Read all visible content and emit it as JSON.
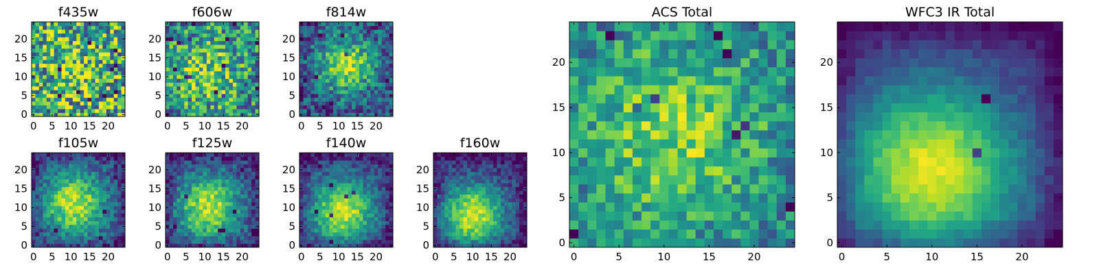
{
  "chart_data": {
    "type": "heatmap",
    "colormap": "viridis",
    "grid": false,
    "panels": [
      {
        "id": "f435w",
        "title": "f435w",
        "size": 25,
        "xlim": [
          0,
          24
        ],
        "ylim": [
          0,
          24
        ],
        "xticks": [
          "0",
          "5",
          "10",
          "15",
          "20"
        ],
        "yticks": [
          "0",
          "5",
          "10",
          "15",
          "20"
        ],
        "pattern": "noise",
        "peak": [
          12,
          12
        ],
        "spread": 6,
        "strength": 0.15,
        "noise": 0.9
      },
      {
        "id": "f606w",
        "title": "f606w",
        "size": 25,
        "xlim": [
          0,
          24
        ],
        "ylim": [
          0,
          24
        ],
        "xticks": [
          "0",
          "5",
          "10",
          "15",
          "20"
        ],
        "yticks": [
          "0",
          "5",
          "10",
          "15",
          "20"
        ],
        "pattern": "noise",
        "peak": [
          11,
          11
        ],
        "spread": 6,
        "strength": 0.35,
        "noise": 0.7
      },
      {
        "id": "f814w",
        "title": "f814w",
        "size": 25,
        "xlim": [
          0,
          24
        ],
        "ylim": [
          0,
          24
        ],
        "xticks": [
          "0",
          "5",
          "10",
          "15",
          "20"
        ],
        "yticks": [
          "0",
          "5",
          "10",
          "15",
          "20"
        ],
        "pattern": "source",
        "peak": [
          12,
          13
        ],
        "spread": 5,
        "strength": 0.6,
        "noise": 0.5
      },
      {
        "id": "f105w",
        "title": "f105w",
        "size": 25,
        "xlim": [
          0,
          24
        ],
        "ylim": [
          0,
          24
        ],
        "xticks": [
          "0",
          "5",
          "10",
          "15",
          "20"
        ],
        "yticks": [
          "0",
          "5",
          "10",
          "15",
          "20"
        ],
        "pattern": "source",
        "peak": [
          11,
          11
        ],
        "spread": 6,
        "strength": 0.7,
        "noise": 0.35
      },
      {
        "id": "f125w",
        "title": "f125w",
        "size": 25,
        "xlim": [
          0,
          24
        ],
        "ylim": [
          0,
          24
        ],
        "xticks": [
          "0",
          "5",
          "10",
          "15",
          "20"
        ],
        "yticks": [
          "0",
          "5",
          "10",
          "15",
          "20"
        ],
        "pattern": "source",
        "peak": [
          11,
          10
        ],
        "spread": 6,
        "strength": 0.72,
        "noise": 0.35
      },
      {
        "id": "f140w",
        "title": "f140w",
        "size": 25,
        "xlim": [
          0,
          24
        ],
        "ylim": [
          0,
          24
        ],
        "xticks": [
          "0",
          "5",
          "10",
          "15",
          "20"
        ],
        "yticks": [
          "0",
          "5",
          "10",
          "15",
          "20"
        ],
        "pattern": "source",
        "peak": [
          11,
          9
        ],
        "spread": 6,
        "strength": 0.75,
        "noise": 0.3
      },
      {
        "id": "f160w",
        "title": "f160w",
        "size": 25,
        "xlim": [
          0,
          24
        ],
        "ylim": [
          0,
          24
        ],
        "xticks": [
          "0",
          "5",
          "10",
          "15",
          "20"
        ],
        "yticks": [
          "0",
          "5",
          "10",
          "15",
          "20"
        ],
        "pattern": "source",
        "peak": [
          10,
          8
        ],
        "spread": 6,
        "strength": 0.8,
        "noise": 0.28
      },
      {
        "id": "acs-total",
        "title": "ACS Total",
        "size": 25,
        "xlim": [
          0,
          24
        ],
        "ylim": [
          0,
          24
        ],
        "xticks": [
          "0",
          "5",
          "10",
          "15",
          "20"
        ],
        "yticks": [
          "0",
          "5",
          "10",
          "15",
          "20"
        ],
        "pattern": "source",
        "peak": [
          11,
          12
        ],
        "spread": 7,
        "strength": 0.35,
        "noise": 0.45
      },
      {
        "id": "wfc3-ir-total",
        "title": "WFC3 IR Total",
        "size": 25,
        "xlim": [
          0,
          24
        ],
        "ylim": [
          0,
          24
        ],
        "xticks": [
          "0",
          "5",
          "10",
          "15",
          "20"
        ],
        "yticks": [
          "0",
          "5",
          "10",
          "15",
          "20"
        ],
        "pattern": "source",
        "peak": [
          10,
          8
        ],
        "spread": 7,
        "strength": 0.85,
        "noise": 0.12
      }
    ]
  }
}
